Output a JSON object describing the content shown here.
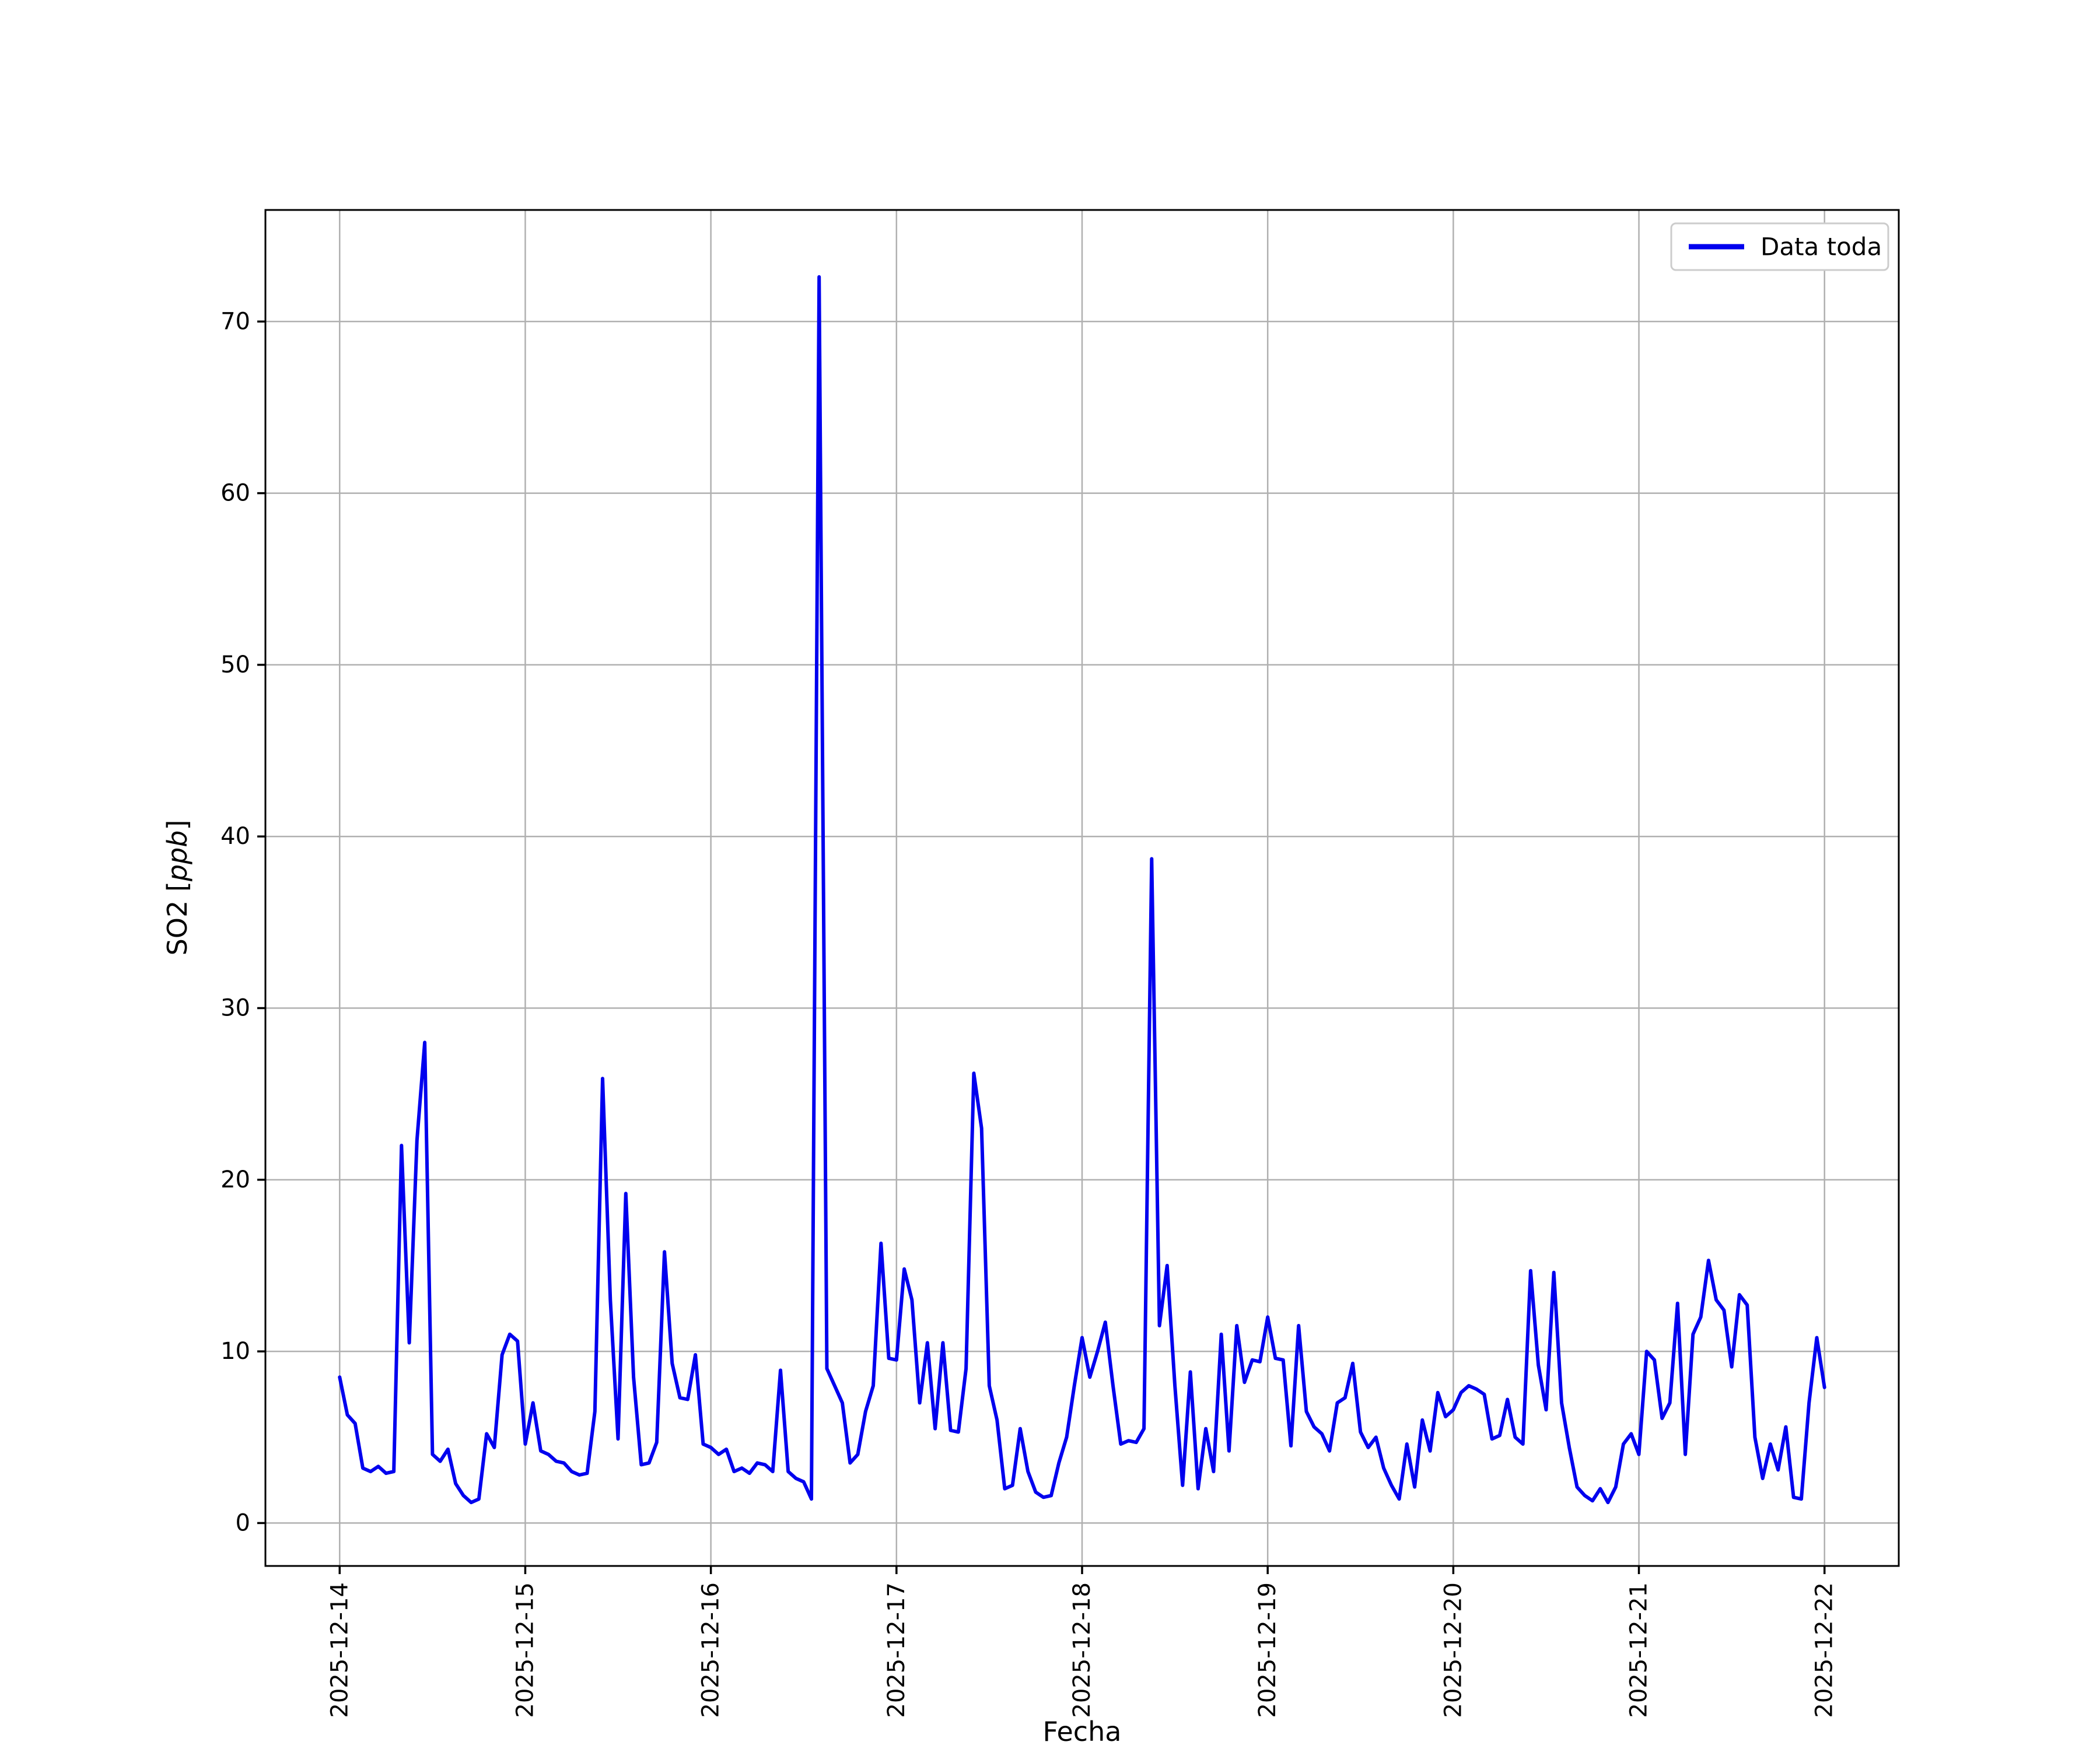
{
  "figure": {
    "background": "#ffffff",
    "axes_color": "#000000"
  },
  "chart_data": {
    "type": "line",
    "title": "",
    "xlabel": "Fecha",
    "ylabel": "SO2 [ppb]",
    "ylabel_parts": {
      "prefix": "SO2 [",
      "italic": "ppb",
      "suffix": "]"
    },
    "legend": [
      "Data toda"
    ],
    "legend_position": "upper right",
    "grid": true,
    "grid_color": "#b0b0b0",
    "x_start": "2025-12-14 00:00",
    "x_interval": "1 hour",
    "x_tick_labels": [
      "2025-12-14",
      "2025-12-15",
      "2025-12-16",
      "2025-12-17",
      "2025-12-18",
      "2025-12-19",
      "2025-12-20",
      "2025-12-21",
      "2025-12-22"
    ],
    "y_ticks": [
      0,
      10,
      20,
      30,
      40,
      50,
      60,
      70
    ],
    "ylim": [
      -2.5,
      76.5
    ],
    "xlim_days": [
      -0.4,
      8.4
    ],
    "series": [
      {
        "name": "Data toda",
        "color": "#0000ee",
        "interval_hours": 1,
        "values": [
          8.5,
          6.3,
          5.8,
          3.2,
          3.0,
          3.3,
          2.9,
          3.0,
          22.0,
          10.5,
          22.3,
          28.0,
          4.0,
          3.6,
          4.3,
          2.3,
          1.6,
          1.2,
          1.4,
          5.2,
          4.4,
          9.8,
          11.0,
          10.6,
          4.6,
          7.0,
          4.2,
          4.0,
          3.6,
          3.5,
          3.0,
          2.8,
          2.9,
          6.5,
          25.9,
          13.0,
          4.9,
          19.2,
          8.5,
          3.4,
          3.5,
          4.7,
          15.8,
          9.3,
          7.3,
          7.2,
          9.8,
          4.6,
          4.4,
          4.0,
          4.3,
          3.0,
          3.2,
          2.9,
          3.5,
          3.4,
          3.0,
          8.9,
          3.0,
          2.6,
          2.4,
          1.4,
          72.6,
          9.0,
          8.0,
          7.0,
          3.5,
          4.0,
          6.5,
          8.0,
          16.3,
          9.6,
          9.5,
          14.8,
          13.0,
          7.0,
          10.5,
          5.5,
          10.5,
          5.4,
          5.3,
          9.0,
          26.2,
          23.0,
          8.0,
          6.0,
          2.0,
          2.2,
          5.5,
          3.0,
          1.8,
          1.5,
          1.6,
          3.5,
          5.0,
          8.0,
          10.8,
          8.5,
          10.0,
          11.7,
          8.0,
          4.6,
          4.8,
          4.7,
          5.5,
          38.7,
          11.5,
          15.0,
          8.0,
          2.2,
          8.8,
          2.0,
          5.5,
          3.0,
          11.0,
          4.2,
          11.5,
          8.2,
          9.5,
          9.4,
          12.0,
          9.6,
          9.5,
          4.5,
          11.5,
          6.5,
          5.6,
          5.2,
          4.2,
          7.0,
          7.3,
          9.3,
          5.3,
          4.4,
          5.0,
          3.2,
          2.2,
          1.4,
          4.6,
          2.1,
          6.0,
          4.2,
          7.6,
          6.2,
          6.6,
          7.6,
          8.0,
          7.8,
          7.5,
          4.9,
          5.1,
          7.2,
          5.0,
          4.6,
          14.7,
          9.2,
          6.6,
          14.6,
          7.0,
          4.4,
          2.1,
          1.6,
          1.3,
          2.0,
          1.2,
          2.1,
          4.6,
          5.2,
          4.0,
          10.0,
          9.5,
          6.1,
          7.0,
          12.8,
          4.0,
          11.0,
          12.0,
          15.3,
          13.0,
          12.4,
          9.1,
          13.3,
          12.7,
          5.0,
          2.6,
          4.6,
          3.1,
          5.6,
          1.5,
          1.4,
          7.0,
          10.8,
          7.9
        ]
      }
    ]
  }
}
